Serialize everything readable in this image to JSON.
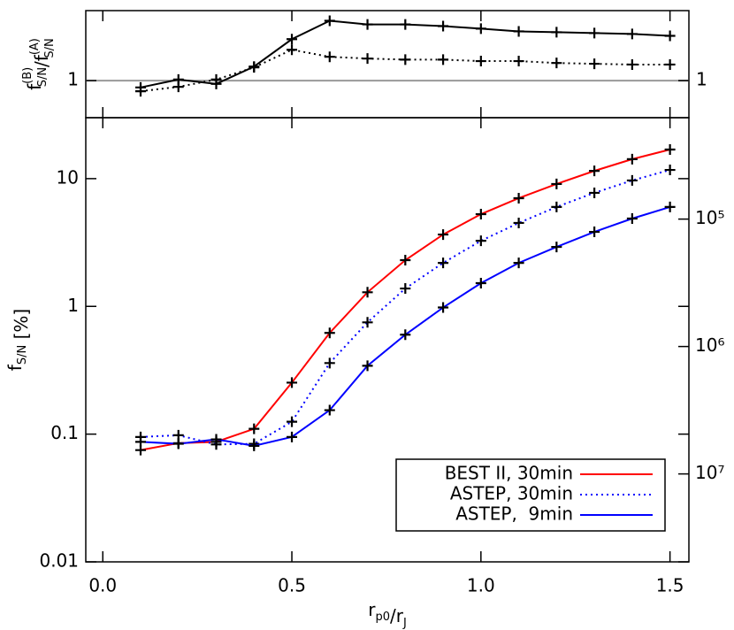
{
  "chart_data": [
    {
      "type": "line",
      "ylog": true,
      "xlim": [
        -0.045,
        1.55
      ],
      "xticks": [
        0,
        0.5,
        1,
        1.5
      ],
      "show_xtick_labels": false,
      "ylim": [
        0.5,
        3.7
      ],
      "yticks": [
        1
      ],
      "mirror_ytick_labels": true,
      "reference_line_color": "#999999",
      "ylabel": [
        {
          "text": "f",
          "sup": "(B)",
          "sub": "S/N"
        },
        {
          "text": "/f",
          "sup": "(A)",
          "sub": "S/N"
        }
      ],
      "x": [
        0.1,
        0.2,
        0.3,
        0.4,
        0.5,
        0.6,
        0.7,
        0.8,
        0.9,
        1.0,
        1.1,
        1.2,
        1.3,
        1.4,
        1.5
      ],
      "series": [
        {
          "color": "#000000",
          "dash": "solid",
          "marker": "+",
          "values": [
            0.88,
            1.02,
            0.94,
            1.3,
            2.17,
            3.06,
            2.86,
            2.86,
            2.77,
            2.64,
            2.51,
            2.47,
            2.43,
            2.39,
            2.31
          ]
        },
        {
          "color": "#000000",
          "dash": "dotted",
          "marker": "+",
          "values": [
            0.82,
            0.89,
            1.02,
            1.28,
            1.78,
            1.56,
            1.51,
            1.48,
            1.48,
            1.44,
            1.44,
            1.39,
            1.37,
            1.35,
            1.35
          ]
        }
      ]
    },
    {
      "type": "line",
      "ylog": true,
      "xlim": [
        -0.045,
        1.55
      ],
      "xticks": [
        {
          "value": 0,
          "label": "0.0"
        },
        0.5,
        {
          "value": 1,
          "label": "1.0"
        },
        1.5
      ],
      "show_xtick_labels": true,
      "ylim": [
        0.01,
        30
      ],
      "yticks": [
        0.01,
        0.1,
        1,
        10
      ],
      "y2log": true,
      "y2lim": [
        49000000,
        16000
      ],
      "y2ticks": [
        {
          "value": 100000,
          "label": "10⁵"
        },
        {
          "value": 1000000,
          "label": "10⁶"
        },
        {
          "value": 10000000,
          "label": "10⁷"
        }
      ],
      "ylabel": [
        {
          "text": "f",
          "sub": "S/N"
        },
        {
          "text": " [%]"
        }
      ],
      "xlabel": [
        {
          "text": "r",
          "sub": "p0"
        },
        {
          "text": "/r",
          "sub": "J"
        }
      ],
      "legend_position": "lower right",
      "x": [
        0.1,
        0.2,
        0.3,
        0.4,
        0.5,
        0.6,
        0.7,
        0.8,
        0.9,
        1.0,
        1.1,
        1.2,
        1.3,
        1.4,
        1.5
      ],
      "series": [
        {
          "name": "BEST II, 30min",
          "color": "#ff0000",
          "dash": "solid",
          "marker": "+",
          "values": [
            0.075,
            0.085,
            0.087,
            0.11,
            0.253,
            0.62,
            1.29,
            2.3,
            3.65,
            5.27,
            7.03,
            9.08,
            11.5,
            14.2,
            16.9
          ]
        },
        {
          "name": "ASTEP, 30min",
          "color": "#0000ff",
          "dash": "dotted",
          "marker": "+",
          "values": [
            0.095,
            0.098,
            0.083,
            0.084,
            0.125,
            0.36,
            0.75,
            1.38,
            2.19,
            3.26,
            4.5,
            6.0,
            7.74,
            9.68,
            11.7
          ]
        },
        {
          "name": "ASTEP,  9min",
          "color": "#0000ff",
          "dash": "solid",
          "marker": "+",
          "values": [
            0.087,
            0.084,
            0.091,
            0.081,
            0.095,
            0.154,
            0.343,
            0.6,
            0.98,
            1.52,
            2.19,
            2.92,
            3.83,
            4.87,
            6.0
          ]
        }
      ]
    }
  ]
}
